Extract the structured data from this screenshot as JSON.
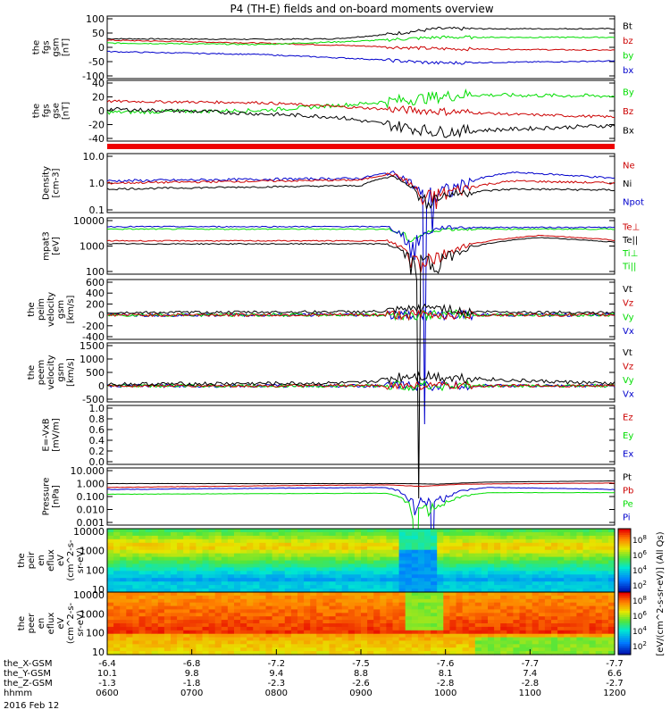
{
  "title": "P4 (TH-E) fields and on-board moments overview",
  "colors": {
    "black": "#000000",
    "red": "#cc0000",
    "green": "#00dd00",
    "blue": "#0000cc"
  },
  "panels": [
    {
      "id": "fgs-gsm",
      "ylabel": [
        "the",
        "fgs",
        "gsm",
        "[nT]"
      ],
      "ticks": [
        "100",
        "50",
        "0",
        "-50",
        "-100"
      ],
      "legend": [
        {
          "text": "Bt",
          "color": "black"
        },
        {
          "text": "bz",
          "color": "red"
        },
        {
          "text": "by",
          "color": "green"
        },
        {
          "text": "bx",
          "color": "blue"
        }
      ]
    },
    {
      "id": "fgs-gse",
      "ylabel": [
        "the",
        "fgs",
        "gse",
        "[nT]"
      ],
      "ticks": [
        "40",
        "20",
        "0",
        "-20",
        "-40"
      ],
      "legend": [
        {
          "text": "By",
          "color": "green"
        },
        {
          "text": "Bz",
          "color": "red"
        },
        {
          "text": "Bx",
          "color": "black"
        }
      ]
    },
    {
      "id": "density",
      "ylabel": [
        "Density",
        "[cm-3]"
      ],
      "ticks": [
        "10.0",
        "1.0",
        "0.1"
      ],
      "legend": [
        {
          "text": "Ne",
          "color": "red"
        },
        {
          "text": "Ni",
          "color": "black"
        },
        {
          "text": "Npot",
          "color": "blue"
        }
      ]
    },
    {
      "id": "temperature",
      "ylabel": [
        "mpat3",
        "[eV]"
      ],
      "ticks": [
        "10000",
        "1000",
        "100"
      ],
      "legend": [
        {
          "text": "Te⊥",
          "color": "red"
        },
        {
          "text": "Te||",
          "color": "black"
        },
        {
          "text": "Ti⊥",
          "color": "green"
        },
        {
          "text": "Ti||",
          "color": "green"
        }
      ]
    },
    {
      "id": "peim-velocity",
      "ylabel": [
        "the",
        "peim",
        "velocity",
        "gsm",
        "[km/s]"
      ],
      "ticks": [
        "600",
        "400",
        "200",
        "0",
        "-200",
        "-400"
      ],
      "legend": [
        {
          "text": "Vt",
          "color": "black"
        },
        {
          "text": "Vz",
          "color": "red"
        },
        {
          "text": "Vy",
          "color": "green"
        },
        {
          "text": "Vx",
          "color": "blue"
        }
      ]
    },
    {
      "id": "peem-velocity",
      "ylabel": [
        "the",
        "peem",
        "velocity",
        "gsm",
        "[km/s]"
      ],
      "ticks": [
        "1500",
        "1000",
        "500",
        "0",
        "-500"
      ],
      "legend": [
        {
          "text": "Vt",
          "color": "black"
        },
        {
          "text": "Vz",
          "color": "red"
        },
        {
          "text": "Vy",
          "color": "green"
        },
        {
          "text": "Vx",
          "color": "blue"
        }
      ]
    },
    {
      "id": "efield",
      "ylabel": [
        "E=-VxB",
        "[mV/m]"
      ],
      "ticks": [
        "1.0",
        "0.8",
        "0.6",
        "0.4",
        "0.2",
        "0.0"
      ],
      "legend": [
        {
          "text": "Ez",
          "color": "red"
        },
        {
          "text": "Ey",
          "color": "green"
        },
        {
          "text": "Ex",
          "color": "blue"
        }
      ]
    },
    {
      "id": "pressure",
      "ylabel": [
        "Pressure",
        "[nPa]"
      ],
      "ticks": [
        "10.000",
        "1.000",
        "0.100",
        "0.010",
        "0.001"
      ],
      "legend": [
        {
          "text": "Pt",
          "color": "black"
        },
        {
          "text": "Pb",
          "color": "red"
        },
        {
          "text": "Pe",
          "color": "green"
        },
        {
          "text": "Pi",
          "color": "blue"
        }
      ]
    },
    {
      "id": "ion-spectrogram",
      "ylabel": [
        "the",
        "peir",
        "en",
        "eflux",
        "eV",
        "(cm^2-s-",
        "sr-eV)"
      ],
      "ticks": [
        "10000",
        "1000",
        "100",
        "10"
      ]
    },
    {
      "id": "electron-spectrogram",
      "ylabel": [
        "the",
        "peer",
        "en",
        "eflux",
        "eV",
        "(cm^2-s-",
        "sr-eV)"
      ],
      "ticks": [
        "10000",
        "1000",
        "100",
        "10"
      ]
    }
  ],
  "colorbar": {
    "label": "[eV/(cm^2-s-sr-eV)] (All Qs)",
    "ticks": [
      "10^8",
      "10^6",
      "10^4",
      "10^2",
      "10^8",
      "10^6",
      "10^4",
      "10^2"
    ]
  },
  "xaxis": {
    "rows": [
      {
        "label": "the_X-GSM",
        "values": [
          "-6.4",
          "-6.8",
          "-7.2",
          "-7.5",
          "-7.6",
          "-7.7",
          "-7.7"
        ]
      },
      {
        "label": "the_Y-GSM",
        "values": [
          "10.1",
          "9.8",
          "9.4",
          "8.8",
          "8.1",
          "7.4",
          "6.6"
        ]
      },
      {
        "label": "the_Z-GSM",
        "values": [
          "-1.3",
          "-1.8",
          "-2.3",
          "-2.6",
          "-2.8",
          "-2.8",
          "-2.7"
        ]
      },
      {
        "label": "hhmm",
        "values": [
          "0600",
          "0700",
          "0800",
          "0900",
          "1000",
          "1100",
          "1200"
        ]
      }
    ],
    "date": "2016 Feb 12"
  },
  "chart_data": {
    "type": "line",
    "title": "P4 (TH-E) fields and on-board moments overview",
    "x": [
      "0600",
      "0700",
      "0800",
      "0900",
      "1000",
      "1100",
      "1200"
    ],
    "series": [
      {
        "name": "Bt",
        "values": [
          30,
          28,
          27,
          40,
          65,
          60,
          62
        ]
      },
      {
        "name": "bz",
        "values": [
          25,
          18,
          10,
          0,
          -8,
          -5,
          -10
        ]
      },
      {
        "name": "by",
        "values": [
          10,
          10,
          12,
          25,
          35,
          30,
          32
        ]
      },
      {
        "name": "bx",
        "values": [
          -15,
          -20,
          -25,
          -40,
          -50,
          -45,
          -48
        ]
      },
      {
        "name": "Ne",
        "values": [
          1.0,
          1.1,
          1.1,
          1.3,
          0.3,
          1.5,
          0.9
        ]
      },
      {
        "name": "Ni",
        "values": [
          0.6,
          0.7,
          0.7,
          0.9,
          0.25,
          0.7,
          0.6
        ]
      },
      {
        "name": "Npot",
        "values": [
          1.2,
          1.3,
          1.4,
          1.8,
          0.3,
          2.0,
          1.4
        ]
      },
      {
        "name": "Pt",
        "values": [
          1.0,
          1.0,
          1.0,
          1.0,
          0.7,
          1.3,
          1.6
        ]
      },
      {
        "name": "Pb",
        "values": [
          0.6,
          0.7,
          0.7,
          0.8,
          0.6,
          0.9,
          1.1
        ]
      },
      {
        "name": "Pe",
        "values": [
          0.15,
          0.16,
          0.17,
          0.18,
          0.01,
          0.2,
          0.2
        ]
      },
      {
        "name": "Pi",
        "values": [
          0.4,
          0.45,
          0.5,
          0.6,
          0.05,
          0.5,
          0.4
        ]
      }
    ]
  }
}
